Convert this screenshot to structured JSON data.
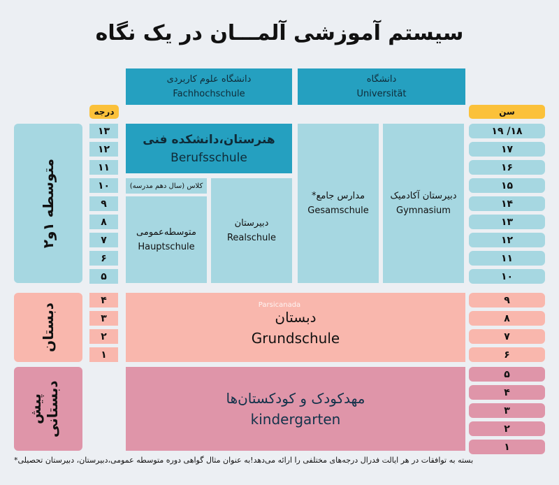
{
  "title": "سیستم آموزشی آلمـــان در یک نگاه",
  "headers": {
    "fh_fa": "دانشگاه علوم کاربردی",
    "fh_de": "Fachhochschule",
    "uni_fa": "دانشگاه",
    "uni_de": "Universität",
    "grade": "درجه",
    "age": "سن"
  },
  "secondary": {
    "label": "متوسطه ۱و۲",
    "grades": [
      "۱۳",
      "۱۲",
      "۱۱",
      "۱۰",
      "۹",
      "۸",
      "۷",
      "۶",
      "۵"
    ],
    "ages": [
      "۱۹ /۱۸",
      "۱۷",
      "۱۶",
      "۱۵",
      "۱۴",
      "۱۳",
      "۱۲",
      "۱۱",
      "۱۰"
    ],
    "beruf_fa": "هنرستان،دانشکده فنی",
    "beruf_de": "Berufsschule",
    "class_note": "کلاس (سال دهم مدرسه)",
    "haupt_fa": "متوسطه‌عمومی",
    "haupt_de": "Hauptschule",
    "real_fa": "دبیرستان",
    "real_de": "Realschule",
    "gesamt_fa": "مدارس جامع*",
    "gesamt_de": "Gesamschule",
    "gym_fa": "دبیرستان آکادمیک",
    "gym_de": "Gymnasium"
  },
  "primary": {
    "label": "دبستان",
    "grades": [
      "۴",
      "۳",
      "۲",
      "۱"
    ],
    "ages": [
      "۹",
      "۸",
      "۷",
      "۶"
    ],
    "fa": "دبستان",
    "de": "Grundschule"
  },
  "preschool": {
    "label": "پیش دبستانی",
    "ages": [
      "۵",
      "۴",
      "۳",
      "۲",
      "۱"
    ],
    "fa": "مهدکودک و کودکستان‌ها",
    "de": "kindergarten"
  },
  "watermark": "Parsicanada",
  "footnote": "بسته به توافقات در هر ایالت فدرال درجه‌های مختلفی را ارائه می‌دهد!به عنوان مثال گواهی دوره متوسطه عمومی،دبیرستان، دبیرستان تحصیلی*"
}
